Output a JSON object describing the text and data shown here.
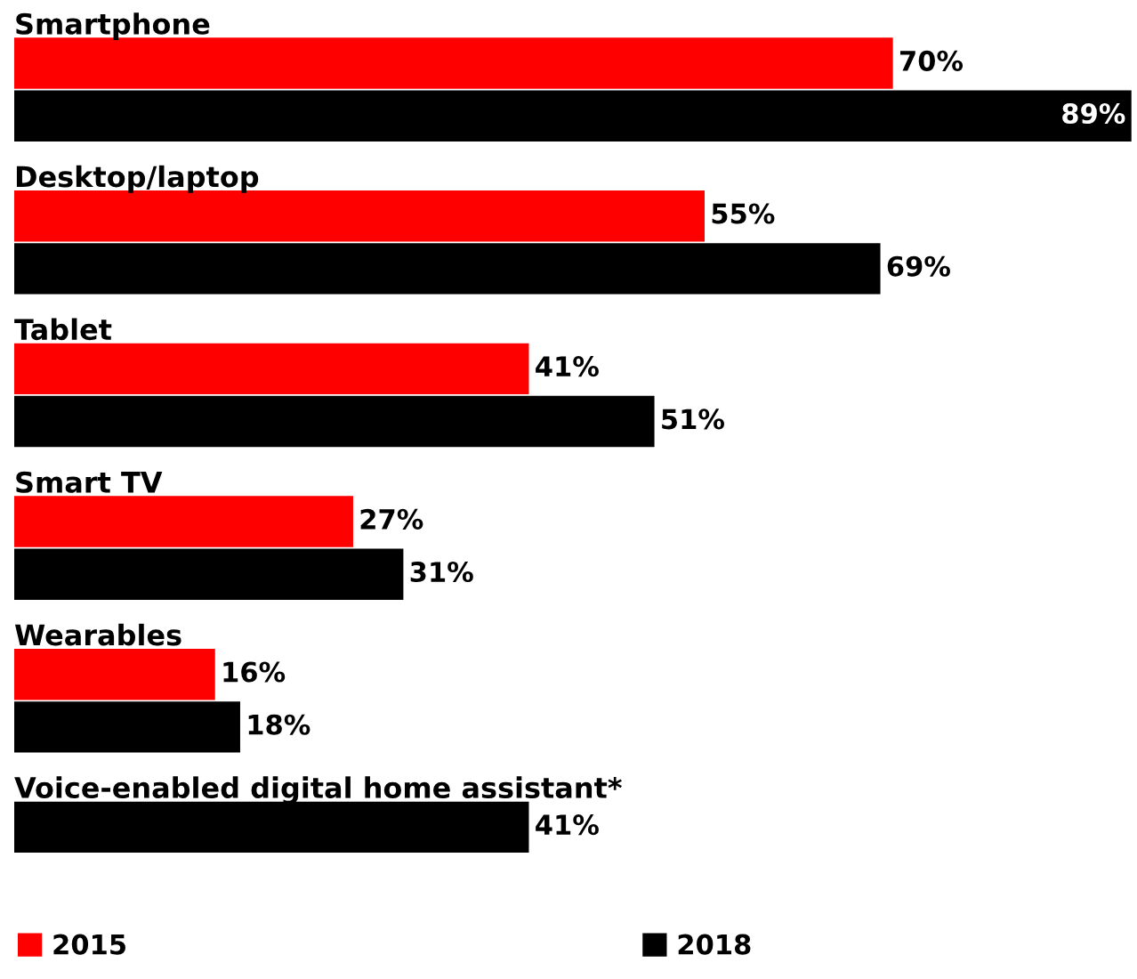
{
  "chart_data": {
    "type": "bar",
    "orientation": "horizontal",
    "categories": [
      "Smartphone",
      "Desktop/laptop",
      "Tablet",
      "Smart TV",
      "Wearables",
      "Voice-enabled digital home assistant*"
    ],
    "series": [
      {
        "name": "2015",
        "color": "#ff0000",
        "values": [
          70,
          55,
          41,
          27,
          16,
          null
        ],
        "value_labels": [
          "70%",
          "55%",
          "41%",
          "27%",
          "16%",
          null
        ]
      },
      {
        "name": "2018",
        "color": "#000000",
        "values": [
          89,
          69,
          51,
          31,
          18,
          41
        ],
        "value_labels": [
          "89%",
          "69%",
          "51%",
          "31%",
          "18%",
          "41%"
        ]
      }
    ],
    "legend": "bottom"
  }
}
